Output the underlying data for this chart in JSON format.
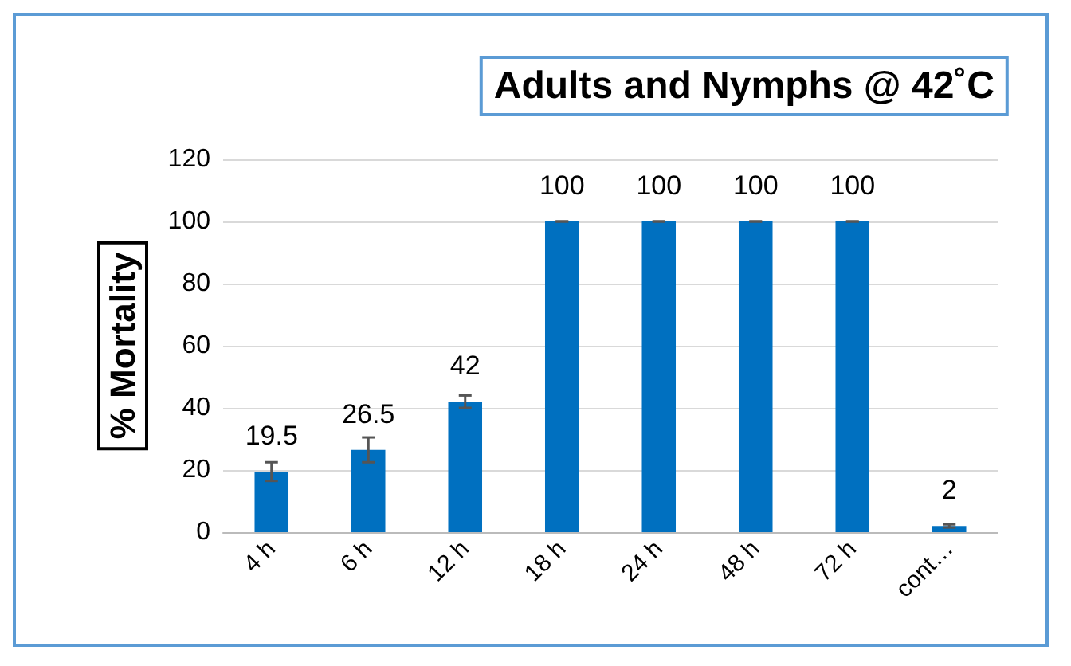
{
  "chart_data": {
    "type": "bar",
    "title": "Adults and Nymphs @ 42˚C",
    "ylabel": "% Mortality",
    "categories": [
      "4 h",
      "6 h",
      "12 h",
      "18 h",
      "24 h",
      "48 h",
      "72 h",
      "cont…"
    ],
    "values": [
      19.5,
      26.5,
      42,
      100,
      100,
      100,
      100,
      2
    ],
    "errors": [
      3,
      4,
      2,
      0,
      0,
      0,
      0,
      0.5
    ],
    "color": "#0070c0",
    "ylim": [
      0,
      120
    ],
    "yticks": [
      0,
      20,
      40,
      60,
      80,
      100,
      120
    ],
    "grid": "y",
    "data_labels": true
  }
}
